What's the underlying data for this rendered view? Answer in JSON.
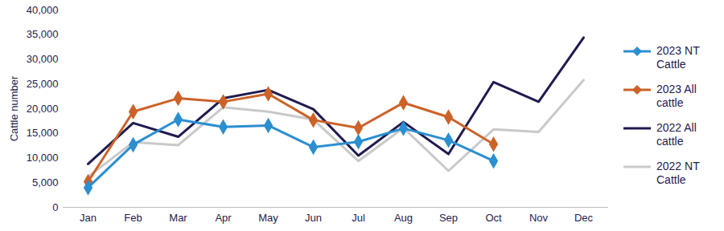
{
  "chart_data": {
    "type": "line",
    "y_label": "Cattle number",
    "categories": [
      "Jan",
      "Feb",
      "Mar",
      "Apr",
      "May",
      "Jun",
      "Jul",
      "Aug",
      "Sep",
      "Oct",
      "Nov",
      "Dec"
    ],
    "series": [
      {
        "name": "2023 NT Cattle",
        "color": "#2B8FD0",
        "marker": "diamond",
        "values": [
          4000,
          12700,
          17800,
          16300,
          16600,
          12200,
          13300,
          16000,
          13600,
          9400,
          null,
          null
        ]
      },
      {
        "name": "2023 All cattle",
        "color": "#CC6228",
        "marker": "diamond",
        "values": [
          5200,
          19400,
          22100,
          21400,
          23000,
          17700,
          16100,
          21200,
          18300,
          12800,
          null,
          null
        ]
      },
      {
        "name": "2022 All cattle",
        "color": "#1F1A4F",
        "values": [
          8800,
          17100,
          14300,
          22100,
          23800,
          19900,
          10500,
          17300,
          10800,
          25400,
          21400,
          34400
        ]
      },
      {
        "name": "2022 NT Cattle",
        "color": "#C9C9C9",
        "values": [
          6200,
          13200,
          12600,
          20300,
          19400,
          17800,
          9400,
          16100,
          7400,
          15800,
          15300,
          25800
        ]
      }
    ],
    "ylim": [
      0,
      40000
    ],
    "yticks": [
      0,
      {
        "value": 5000,
        "label": "5,000"
      },
      {
        "value": 10000,
        "label": "10,000"
      },
      {
        "value": 15000,
        "label": "15,000"
      },
      {
        "value": 20000,
        "label": "20,000"
      },
      {
        "value": 25000,
        "label": "25,000"
      },
      {
        "value": 30000,
        "label": "30,000"
      },
      {
        "value": 35000,
        "label": "35,000"
      },
      {
        "value": 40000,
        "label": "40,000"
      }
    ],
    "grid": false,
    "legend": "right"
  }
}
